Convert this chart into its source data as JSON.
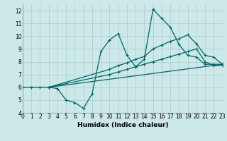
{
  "xlabel": "Humidex (Indice chaleur)",
  "xlim": [
    0,
    23
  ],
  "ylim": [
    4,
    12.5
  ],
  "xticks": [
    0,
    1,
    2,
    3,
    4,
    5,
    6,
    7,
    8,
    9,
    10,
    11,
    12,
    13,
    14,
    15,
    16,
    17,
    18,
    19,
    20,
    21,
    22,
    23
  ],
  "yticks": [
    4,
    5,
    6,
    7,
    8,
    9,
    10,
    11,
    12
  ],
  "bg_color": "#cce8e8",
  "grid_color": "#aacccc",
  "line_color": "#006666",
  "lines": [
    {
      "x": [
        0,
        1,
        2,
        3,
        4,
        5,
        6,
        7,
        8,
        9,
        10,
        11,
        12,
        13,
        14,
        15,
        16,
        17,
        18,
        19,
        20,
        21,
        22,
        23
      ],
      "y": [
        6.0,
        6.0,
        6.0,
        6.0,
        5.9,
        5.0,
        4.8,
        4.35,
        5.5,
        8.8,
        9.7,
        10.2,
        8.5,
        7.6,
        8.2,
        12.1,
        11.4,
        10.7,
        9.35,
        8.5,
        8.35,
        7.8,
        7.8,
        7.8
      ]
    },
    {
      "x": [
        3,
        10,
        11,
        12,
        13,
        14,
        15,
        16,
        17,
        18,
        19,
        20,
        21,
        22,
        23
      ],
      "y": [
        6.0,
        7.4,
        7.7,
        7.9,
        8.2,
        8.4,
        9.0,
        9.3,
        9.6,
        9.8,
        10.1,
        9.4,
        8.5,
        8.35,
        7.8
      ]
    },
    {
      "x": [
        3,
        10,
        11,
        12,
        13,
        14,
        15,
        16,
        17,
        18,
        19,
        20,
        21,
        22,
        23
      ],
      "y": [
        6.0,
        7.0,
        7.2,
        7.4,
        7.6,
        7.8,
        8.0,
        8.2,
        8.4,
        8.6,
        8.8,
        9.0,
        8.0,
        7.7,
        7.7
      ]
    },
    {
      "x": [
        3,
        23
      ],
      "y": [
        6.0,
        7.8
      ]
    }
  ]
}
